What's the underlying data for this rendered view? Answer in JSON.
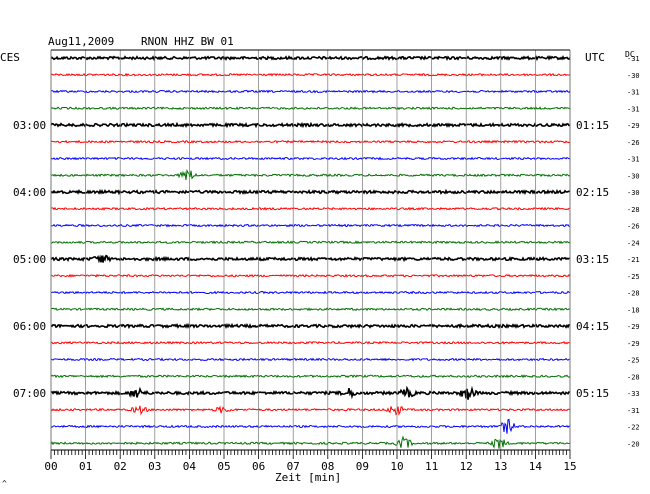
{
  "header": {
    "date": "Aug11,2009",
    "station": "RNON HHZ BW 01",
    "left_tz": "CES",
    "right_tz": "UTC",
    "dc_label": "DC"
  },
  "chart_data": {
    "type": "line",
    "title": "Aug11,2009   RNON HHZ BW 01",
    "xlabel": "Zeit [min]",
    "xlim": [
      0,
      15
    ],
    "x_ticks": [
      "00",
      "01",
      "02",
      "03",
      "04",
      "05",
      "06",
      "07",
      "08",
      "09",
      "10",
      "11",
      "12",
      "13",
      "14",
      "15"
    ],
    "grid": true,
    "left_hour_labels": [
      {
        "row": 4,
        "text": "03:00"
      },
      {
        "row": 8,
        "text": "04:00"
      },
      {
        "row": 12,
        "text": "05:00"
      },
      {
        "row": 16,
        "text": "06:00"
      },
      {
        "row": 20,
        "text": "07:00"
      }
    ],
    "right_hour_labels": [
      {
        "row": 4,
        "text": "01:15"
      },
      {
        "row": 8,
        "text": "02:15"
      },
      {
        "row": 12,
        "text": "03:15"
      },
      {
        "row": 16,
        "text": "04:15"
      },
      {
        "row": 20,
        "text": "05:15"
      }
    ],
    "trace_colors": [
      "#000000",
      "#ff0000",
      "#0000ff",
      "#007000"
    ],
    "dc_offsets": [
      -31,
      -30,
      -31,
      -31,
      -29,
      -26,
      -31,
      -30,
      -30,
      -28,
      -26,
      -24,
      -21,
      -25,
      -28,
      -18,
      -29,
      -29,
      -25,
      -28,
      -33,
      -31,
      -22,
      -20
    ],
    "events": [
      {
        "row": 7,
        "x_min": 3.95,
        "amplitude": 6
      },
      {
        "row": 12,
        "x_min": 1.45,
        "amplitude": 4
      },
      {
        "row": 20,
        "x_min": 2.5,
        "amplitude": 5
      },
      {
        "row": 20,
        "x_min": 8.6,
        "amplitude": 4
      },
      {
        "row": 20,
        "x_min": 10.3,
        "amplitude": 4
      },
      {
        "row": 20,
        "x_min": 12.05,
        "amplitude": 6
      },
      {
        "row": 21,
        "x_min": 2.55,
        "amplitude": 4
      },
      {
        "row": 21,
        "x_min": 4.95,
        "amplitude": 3
      },
      {
        "row": 21,
        "x_min": 9.95,
        "amplitude": 6
      },
      {
        "row": 22,
        "x_min": 13.2,
        "amplitude": 7
      },
      {
        "row": 23,
        "x_min": 10.2,
        "amplitude": 6
      },
      {
        "row": 23,
        "x_min": 12.95,
        "amplitude": 6
      }
    ]
  }
}
